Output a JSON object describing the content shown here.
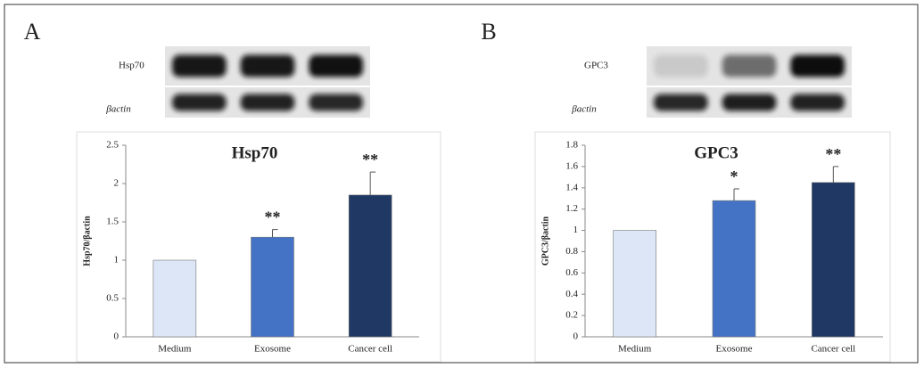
{
  "chart_data": [
    {
      "type": "bar",
      "panel": "A",
      "title": "Hsp70",
      "y_label": "Hsp70/βactin",
      "blots": [
        {
          "label": "Hsp70"
        },
        {
          "label": "βactin"
        }
      ],
      "categories": [
        "Medium",
        "Exosome",
        "Cancer cell"
      ],
      "values": [
        1.0,
        1.3,
        1.85
      ],
      "errors": [
        null,
        0.1,
        0.3
      ],
      "colors": [
        "#dce6f7",
        "#4472c4",
        "#1f3864"
      ],
      "annotations": [
        {
          "category": "Exosome",
          "text": "**"
        },
        {
          "category": "Cancer cell",
          "text": "**"
        }
      ],
      "ylim": [
        0,
        2.5
      ],
      "yticks": [
        0,
        0.5,
        1,
        1.5,
        2,
        2.5
      ]
    },
    {
      "type": "bar",
      "panel": "B",
      "title": "GPC3",
      "y_label": "GPC3/βactin",
      "blots": [
        {
          "label": "GPC3"
        },
        {
          "label": "βactin"
        }
      ],
      "categories": [
        "Medium",
        "Exosome",
        "Cancer cell"
      ],
      "values": [
        1.0,
        1.28,
        1.45
      ],
      "errors": [
        null,
        0.11,
        0.15
      ],
      "colors": [
        "#dce6f7",
        "#4472c4",
        "#1f3864"
      ],
      "annotations": [
        {
          "category": "Exosome",
          "text": "*"
        },
        {
          "category": "Cancer cell",
          "text": "**"
        }
      ],
      "ylim": [
        0,
        1.8
      ],
      "yticks": [
        0,
        0.2,
        0.4,
        0.6,
        0.8,
        1,
        1.2,
        1.4,
        1.6,
        1.8
      ]
    }
  ]
}
